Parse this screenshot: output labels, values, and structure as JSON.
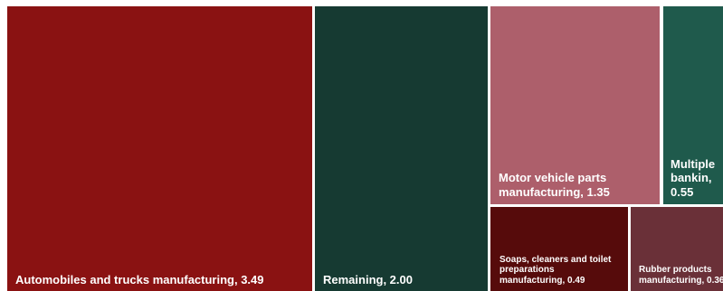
{
  "chart_data": {
    "type": "treemap",
    "title": "",
    "items": [
      {
        "label": "Automobiles and trucks manufacturing",
        "value": 3.49,
        "display": "Automobiles and trucks manufacturing,  3.49",
        "color": "#8a1212"
      },
      {
        "label": "Remaining",
        "value": 2.0,
        "display": "Remaining,  2.00",
        "color": "#163a32"
      },
      {
        "label": "Motor vehicle parts manufacturing",
        "value": 1.35,
        "display": "Motor vehicle parts manufacturing,  1.35",
        "color": "#ad5f6b"
      },
      {
        "label": "Multiple bankin",
        "value": 0.55,
        "display": "Multiple bankin,  0.55",
        "color": "#1f5a4c"
      },
      {
        "label": "Soaps, cleaners and toilet preparations manufacturing",
        "value": 0.49,
        "display": "Soaps, cleaners and toilet preparations manufacturing,  0.49",
        "color": "#560b0b"
      },
      {
        "label": "Rubber products manufacturing",
        "value": 0.36,
        "display": "Rubber products manufacturing,  0.36",
        "color": "#6a3038"
      }
    ]
  }
}
